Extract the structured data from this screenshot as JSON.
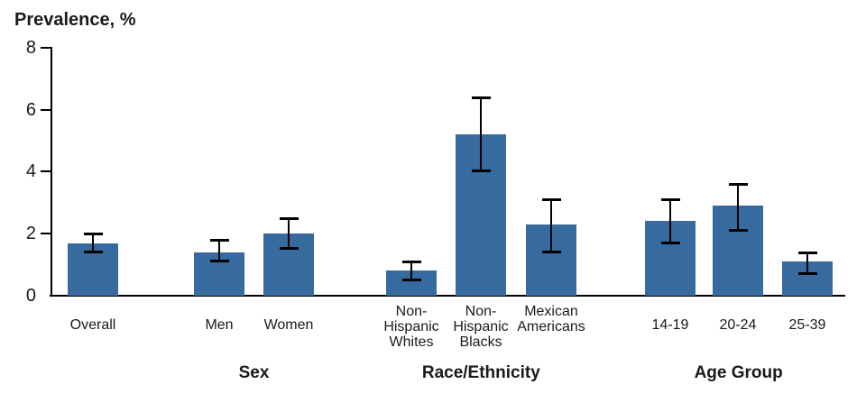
{
  "chart_data": {
    "type": "bar",
    "title": "",
    "ylabel": "Prevalence, %",
    "xlabel": "",
    "ylim": [
      0,
      8
    ],
    "yticks": [
      0,
      2,
      4,
      6,
      8
    ],
    "grid": false,
    "legend": "none",
    "bar_color": "#376A9E",
    "error_bar_color": "#000000",
    "axis_color": "#000000",
    "groups": [
      {
        "label": "",
        "bars": [
          {
            "category": "Overall",
            "label_display": "Overall",
            "value": 1.7,
            "ci_low": 1.4,
            "ci_high": 2.0
          }
        ]
      },
      {
        "label": "Sex",
        "bars": [
          {
            "category": "Men",
            "label_display": "Men",
            "value": 1.4,
            "ci_low": 1.1,
            "ci_high": 1.8
          },
          {
            "category": "Women",
            "label_display": "Women",
            "value": 2.0,
            "ci_low": 1.5,
            "ci_high": 2.5
          }
        ]
      },
      {
        "label": "Race/Ethnicity",
        "bars": [
          {
            "category": "Non-Hispanic Whites",
            "label_display": "Non-\nHispanic\nWhites",
            "value": 0.8,
            "ci_low": 0.5,
            "ci_high": 1.1
          },
          {
            "category": "Non-Hispanic Blacks",
            "label_display": "Non-\nHispanic\nBlacks",
            "value": 5.2,
            "ci_low": 4.0,
            "ci_high": 6.4
          },
          {
            "category": "Mexican Americans",
            "label_display": "Mexican\nAmericans",
            "value": 2.3,
            "ci_low": 1.4,
            "ci_high": 3.1
          }
        ]
      },
      {
        "label": "Age Group",
        "bars": [
          {
            "category": "14-19",
            "label_display": "14-19",
            "value": 2.4,
            "ci_low": 1.7,
            "ci_high": 3.1
          },
          {
            "category": "20-24",
            "label_display": "20-24",
            "value": 2.9,
            "ci_low": 2.1,
            "ci_high": 3.6
          },
          {
            "category": "25-39",
            "label_display": "25-39",
            "value": 1.1,
            "ci_low": 0.7,
            "ci_high": 1.4
          }
        ]
      }
    ]
  }
}
